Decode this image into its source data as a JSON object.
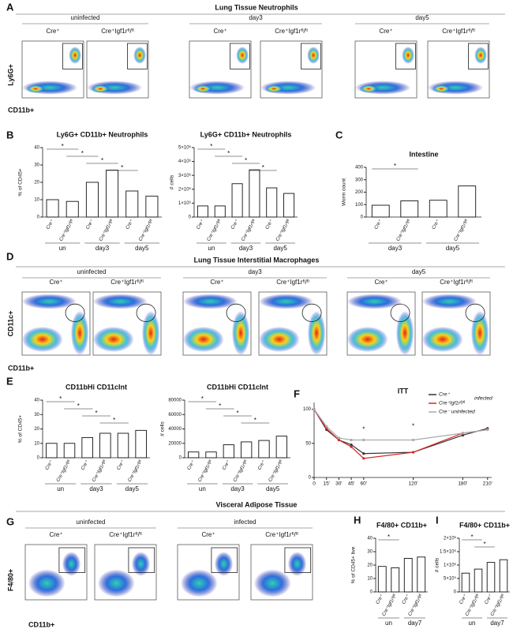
{
  "panels": {
    "labels": [
      "A",
      "B",
      "C",
      "D",
      "E",
      "F",
      "G",
      "H",
      "I"
    ]
  },
  "neutrophils": {
    "title": "Lung Tissue Neutrophils",
    "conditions": [
      "uninfected",
      "day3",
      "day5"
    ],
    "genotypes": [
      "Cre⁺",
      "Cre⁺Igf1rᶠˡ/ᶠˡ"
    ],
    "y_axis": "Ly6G+",
    "x_axis": "CD11b+"
  },
  "macrophages": {
    "title": "Lung Tissue Interstitial Macrophages",
    "conditions": [
      "uninfected",
      "day3",
      "day5"
    ],
    "genotypes": [
      "Cre⁺",
      "Cre⁺Igf1rᶠˡ/ᶠˡ"
    ],
    "y_axis": "CD11c+",
    "x_axis": "CD11b+"
  },
  "adipose": {
    "title": "Visceral Adipose Tissue",
    "conditions": [
      "uninfected",
      "infected"
    ],
    "genotypes": [
      "Cre⁺",
      "Cre⁺Igf1rᶠˡ/ᶠˡ"
    ],
    "y_axis": "F4/80+",
    "x_axis": "CD11b+"
  },
  "chart_data": [
    {
      "type": "bar",
      "title": "Ly6G+ CD11b+ Neutrophils",
      "ylabel": "% of CD45+",
      "categories": [
        "Cre⁺",
        "Cre⁺Igf1rᶠˡ/ᶠˡ",
        "Cre⁺",
        "Cre⁺Igf1rᶠˡ/ᶠˡ",
        "Cre⁺",
        "Cre⁺Igf1rᶠˡ/ᶠˡ"
      ],
      "groups": [
        "un",
        "day3",
        "day5"
      ],
      "values": [
        10,
        9,
        20,
        27,
        15,
        12
      ],
      "ylim": [
        0,
        40
      ],
      "yticks": [
        0,
        10,
        20,
        30,
        40
      ],
      "annotations": [
        "*",
        "*",
        "*",
        "*"
      ]
    },
    {
      "type": "bar",
      "title": "Ly6G+ CD11b+ Neutrophils",
      "ylabel": "# cells",
      "categories": [
        "Cre⁺",
        "Cre⁺Igf1rᶠˡ/ᶠˡ",
        "Cre⁺",
        "Cre⁺Igf1rᶠˡ/ᶠˡ",
        "Cre⁺",
        "Cre⁺Igf1rᶠˡ/ᶠˡ"
      ],
      "groups": [
        "un",
        "day3",
        "day5"
      ],
      "values": [
        800000,
        800000,
        2400000,
        3400000,
        2100000,
        1700000
      ],
      "ylim": [
        0,
        5000000
      ],
      "yticks": [
        0,
        {
          "value": 1000000,
          "label": "1×10⁶"
        },
        {
          "value": 2000000,
          "label": "2×10⁶"
        },
        {
          "value": 3000000,
          "label": "3×10⁶"
        },
        {
          "value": 4000000,
          "label": "4×10⁶"
        },
        {
          "value": 5000000,
          "label": "5×10⁶"
        }
      ],
      "annotations": [
        "*",
        "*",
        "*",
        "*"
      ]
    },
    {
      "type": "bar",
      "title": "Intestine",
      "ylabel": "Worm count",
      "categories": [
        "Cre⁺",
        "Cre⁺Igf1rᶠˡ/ᶠˡ",
        "Cre⁺",
        "Cre⁺Igf1rᶠˡ/ᶠˡ"
      ],
      "groups": [
        "day3",
        "day5"
      ],
      "values": [
        95,
        130,
        135,
        250
      ],
      "ylim": [
        0,
        400
      ],
      "yticks": [
        0,
        100,
        200,
        300,
        400
      ],
      "annotations": [
        "*"
      ]
    },
    {
      "type": "bar",
      "title": "CD11bHi CD11cInt",
      "ylabel": "% of CD45+",
      "categories": [
        "Cre⁺",
        "Cre⁺Igf1rᶠˡ/ᶠˡ",
        "Cre⁺",
        "Cre⁺Igf1rᶠˡ/ᶠˡ",
        "Cre⁺",
        "Cre⁺Igf1rᶠˡ/ᶠˡ"
      ],
      "groups": [
        "un",
        "day3",
        "day5"
      ],
      "values": [
        10,
        10,
        14,
        17,
        17,
        19
      ],
      "ylim": [
        0,
        40
      ],
      "yticks": [
        0,
        10,
        20,
        30,
        40
      ],
      "annotations": [
        "*",
        "*",
        "*",
        "*"
      ]
    },
    {
      "type": "bar",
      "title": "CD11bHi CD11cInt",
      "ylabel": "# cells",
      "categories": [
        "Cre⁺",
        "Cre⁺Igf1rᶠˡ/ᶠˡ",
        "Cre⁺",
        "Cre⁺Igf1rᶠˡ/ᶠˡ",
        "Cre⁺",
        "Cre⁺Igf1rᶠˡ/ᶠˡ"
      ],
      "groups": [
        "un",
        "day3",
        "day5"
      ],
      "values": [
        8000,
        8000,
        18000,
        22000,
        24000,
        30000
      ],
      "ylim": [
        0,
        80000
      ],
      "yticks": [
        0,
        20000,
        40000,
        60000,
        80000
      ],
      "annotations": [
        "*",
        "*",
        "*",
        "*"
      ]
    },
    {
      "type": "line",
      "title": "ITT",
      "x": [
        0,
        15,
        30,
        45,
        60,
        120,
        180,
        210
      ],
      "xlim": [
        0,
        215
      ],
      "xticks": [
        0,
        {
          "value": 15,
          "label": "15'"
        },
        {
          "value": 30,
          "label": "30'"
        },
        {
          "value": 45,
          "label": "45'"
        },
        {
          "value": 60,
          "label": "60'"
        },
        {
          "value": 120,
          "label": "120'"
        },
        {
          "value": 180,
          "label": "180'"
        },
        {
          "value": 210,
          "label": "210'"
        }
      ],
      "ylim": [
        0,
        110
      ],
      "yticks": [
        0,
        50,
        100
      ],
      "legend_group_label": "infected",
      "series": [
        {
          "name": "Cre⁺",
          "color": "#333333",
          "values": [
            100,
            70,
            55,
            48,
            35,
            37,
            62,
            72
          ]
        },
        {
          "name": "Cre⁺Igf1rᶠˡ/ᶠˡ",
          "color": "#d62728",
          "values": [
            100,
            72,
            55,
            45,
            28,
            37,
            65,
            70
          ]
        },
        {
          "name": "Cre⁻ uninfected",
          "color": "#aaaaaa",
          "values": [
            100,
            75,
            58,
            55,
            55,
            55,
            65,
            70
          ]
        }
      ],
      "annotations": [
        "*",
        "*"
      ]
    },
    {
      "type": "bar",
      "title": "F4/80+ CD11b+",
      "ylabel": "% of CD45+ live",
      "categories": [
        "Cre⁺",
        "Cre⁺Igf1rᶠˡ/ᶠˡ",
        "Cre⁺",
        "Cre⁺Igf1rᶠˡ/ᶠˡ"
      ],
      "groups": [
        "un",
        "day7"
      ],
      "values": [
        19,
        18,
        25,
        26
      ],
      "ylim": [
        0,
        40
      ],
      "yticks": [
        0,
        10,
        20,
        30,
        40
      ],
      "annotations": [
        "*"
      ]
    },
    {
      "type": "bar",
      "title": "F4/80+ CD11b+",
      "ylabel": "# cells",
      "categories": [
        "Cre⁺",
        "Cre⁺Igf1rᶠˡ/ᶠˡ",
        "Cre⁺",
        "Cre⁺Igf1rᶠˡ/ᶠˡ"
      ],
      "groups": [
        "un",
        "day7"
      ],
      "values": [
        700000,
        850000,
        1100000,
        1200000
      ],
      "ylim": [
        0,
        2000000
      ],
      "yticks": [
        0,
        {
          "value": 500000,
          "label": "5×10⁵"
        },
        {
          "value": 1000000,
          "label": "1×10⁶"
        },
        {
          "value": 1500000,
          "label": "1.5×10⁶"
        },
        {
          "value": 2000000,
          "label": "2×10⁶"
        }
      ],
      "annotations": [
        "*",
        "*"
      ]
    }
  ]
}
